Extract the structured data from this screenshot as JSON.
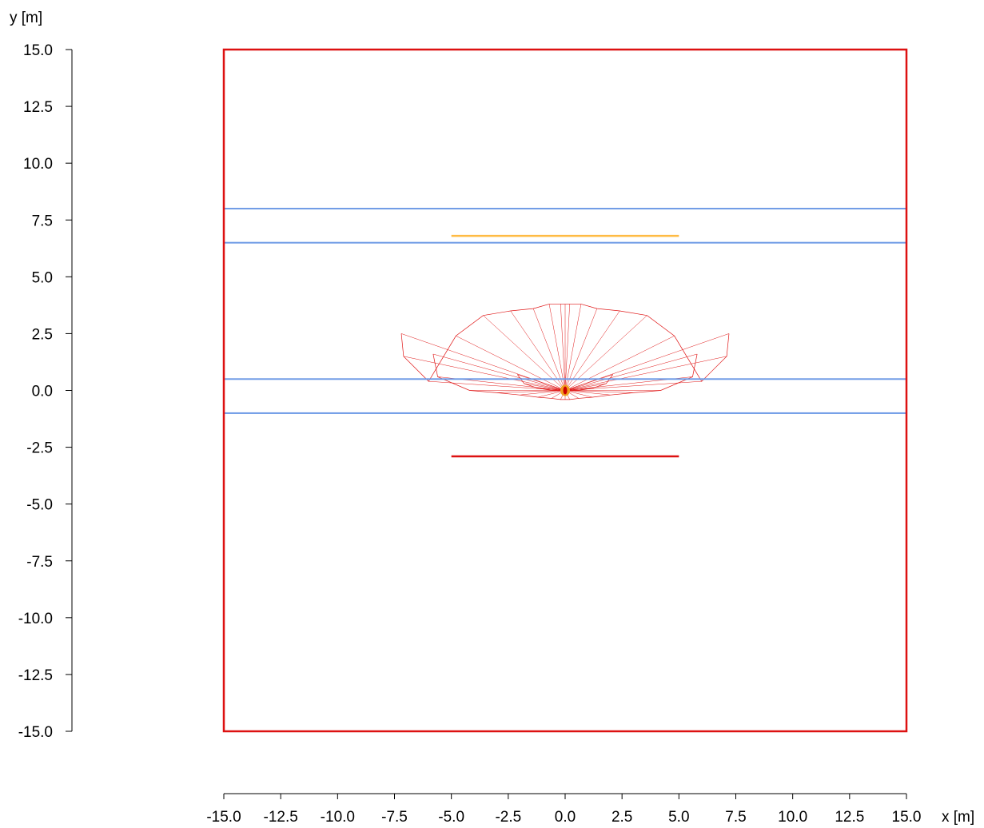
{
  "chart_data": {
    "type": "diagram",
    "xlabel": "x [m]",
    "ylabel": "y [m]",
    "xlim": [
      -15.0,
      15.0
    ],
    "ylim": [
      -15.0,
      15.0
    ],
    "x_ticks": [
      "-15.0",
      "-12.5",
      "-10.0",
      "-7.5",
      "-5.0",
      "-2.5",
      "0.0",
      "2.5",
      "5.0",
      "7.5",
      "10.0",
      "12.5",
      "15.0"
    ],
    "y_ticks": [
      "15.0",
      "12.5",
      "10.0",
      "7.5",
      "5.0",
      "2.5",
      "0.0",
      "-2.5",
      "-5.0",
      "-7.5",
      "-10.0",
      "-12.5",
      "-15.0"
    ],
    "outer_boundary": {
      "x": [
        -15.0,
        15.0
      ],
      "y": [
        -15.0,
        15.0
      ],
      "color": "#dd1111"
    },
    "bands": [
      {
        "y": [
          6.5,
          8.0
        ],
        "color": "#6f9be6"
      },
      {
        "y": [
          -1.0,
          0.5
        ],
        "color": "#6f9be6"
      }
    ],
    "segments": [
      {
        "x": [
          -5.0,
          5.0
        ],
        "y": 6.8,
        "color": "#ffbb44"
      },
      {
        "x": [
          -5.0,
          5.0
        ],
        "y": -2.9,
        "color": "#dd1111"
      }
    ],
    "source_point": {
      "x": 0.0,
      "y": 0.0
    },
    "radiation_pattern": {
      "color": "#e01818",
      "angles_deg": [
        0,
        10,
        20,
        30,
        40,
        50,
        60,
        70,
        80,
        90,
        100,
        110,
        120,
        130,
        140,
        150,
        160,
        170,
        180
      ],
      "rings": [
        {
          "name": "outer",
          "x": [
            7.2,
            7.1,
            6.0,
            4.8,
            3.6,
            2.4,
            1.4,
            0.7,
            0.2,
            0.0,
            -0.2,
            -0.7,
            -1.4,
            -2.4,
            -3.6,
            -4.8,
            -6.0,
            -7.1,
            -7.2
          ],
          "y": [
            2.5,
            1.5,
            0.4,
            2.4,
            3.3,
            3.5,
            3.6,
            3.8,
            3.8,
            3.8,
            3.8,
            3.8,
            3.6,
            3.5,
            3.3,
            2.4,
            0.4,
            1.5,
            2.5
          ]
        },
        {
          "name": "middle",
          "x": [
            5.8,
            5.6,
            4.2,
            3.0,
            2.0,
            1.2,
            0.6,
            0.2,
            0.0,
            -0.2,
            -0.6,
            -1.2,
            -2.0,
            -3.0,
            -4.2,
            -5.6,
            -5.8
          ],
          "y": [
            1.6,
            0.6,
            0.0,
            -0.1,
            -0.2,
            -0.3,
            -0.35,
            -0.4,
            -0.4,
            -0.4,
            -0.35,
            -0.3,
            -0.2,
            -0.1,
            0.0,
            0.6,
            1.6
          ]
        },
        {
          "name": "inner",
          "x": [
            2.1,
            1.8,
            1.2,
            0.6,
            0.0,
            -0.6,
            -1.2,
            -1.8,
            -2.1
          ],
          "y": [
            0.7,
            0.3,
            0.1,
            0.0,
            0.0,
            0.0,
            0.1,
            0.3,
            0.7
          ]
        }
      ]
    }
  }
}
